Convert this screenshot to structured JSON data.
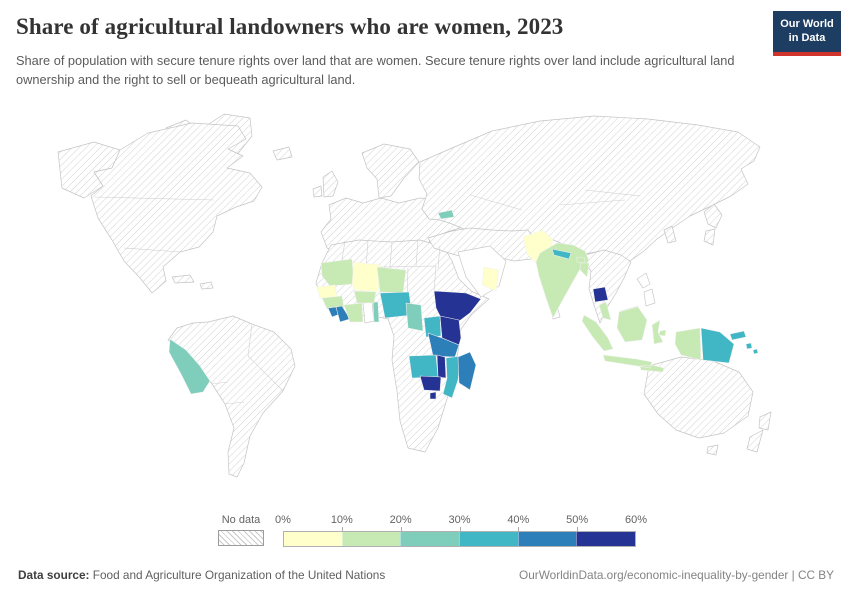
{
  "header": {
    "title": "Share of agricultural landowners who are women, 2023",
    "subtitle": "Share of population with secure tenure rights over land that are women. Secure tenure rights over land include agricultural land ownership and the right to sell or bequeath agricultural land.",
    "logo": {
      "line1": "Our World",
      "line2": "in Data"
    }
  },
  "legend": {
    "no_data_label": "No data",
    "tick_labels": [
      "0%",
      "10%",
      "20%",
      "30%",
      "40%",
      "50%",
      "60%"
    ],
    "bin_colors": [
      "#ffffcc",
      "#c7e9b4",
      "#7fcdbb",
      "#41b6c4",
      "#2c7fb8",
      "#253494"
    ],
    "hatch_color": "#c9c9c9"
  },
  "chart_data": {
    "type": "heatmap",
    "subtype": "choropleth-world-map",
    "title": "Share of agricultural landowners who are women, 2023",
    "unit": "%",
    "value_range": [
      0,
      60
    ],
    "bins": [
      "0-10%",
      "10-20%",
      "20-30%",
      "30-40%",
      "40-50%",
      "50-60%"
    ],
    "bin_colors": [
      "#ffffcc",
      "#c7e9b4",
      "#7fcdbb",
      "#41b6c4",
      "#2c7fb8",
      "#253494"
    ],
    "no_data_style": "hatched",
    "values": [
      {
        "entity": "Senegal",
        "bin": "0-10%"
      },
      {
        "entity": "Mali",
        "bin": "0-10%"
      },
      {
        "entity": "Oman",
        "bin": "0-10%"
      },
      {
        "entity": "Pakistan",
        "bin": "0-10%"
      },
      {
        "entity": "Mauritania",
        "bin": "10-20%"
      },
      {
        "entity": "Guinea",
        "bin": "10-20%"
      },
      {
        "entity": "Côte d'Ivoire",
        "bin": "10-20%"
      },
      {
        "entity": "Burkina Faso",
        "bin": "10-20%"
      },
      {
        "entity": "Niger",
        "bin": "10-20%"
      },
      {
        "entity": "India",
        "bin": "10-20%"
      },
      {
        "entity": "Nepal-region-note",
        "bin": "30-40%"
      },
      {
        "entity": "Bhutan",
        "bin": "10-20%"
      },
      {
        "entity": "Bangladesh",
        "bin": "10-20%"
      },
      {
        "entity": "Malaysia",
        "bin": "10-20%"
      },
      {
        "entity": "Indonesia",
        "bin": "10-20%"
      },
      {
        "entity": "Peru",
        "bin": "20-30%"
      },
      {
        "entity": "Georgia",
        "bin": "20-30%"
      },
      {
        "entity": "Togo",
        "bin": "20-30%"
      },
      {
        "entity": "Cameroon",
        "bin": "20-30%"
      },
      {
        "entity": "Nigeria",
        "bin": "30-40%"
      },
      {
        "entity": "Uganda",
        "bin": "30-40%"
      },
      {
        "entity": "Zambia",
        "bin": "30-40%"
      },
      {
        "entity": "Mozambique",
        "bin": "30-40%"
      },
      {
        "entity": "Nepal",
        "bin": "30-40%"
      },
      {
        "entity": "Papua New Guinea",
        "bin": "30-40%"
      },
      {
        "entity": "Solomon Islands",
        "bin": "30-40%"
      },
      {
        "entity": "Sierra Leone",
        "bin": "40-50%"
      },
      {
        "entity": "Liberia",
        "bin": "40-50%"
      },
      {
        "entity": "Tanzania",
        "bin": "40-50%"
      },
      {
        "entity": "Madagascar",
        "bin": "40-50%"
      },
      {
        "entity": "Ethiopia",
        "bin": "50-60%"
      },
      {
        "entity": "Kenya",
        "bin": "50-60%"
      },
      {
        "entity": "Burundi",
        "bin": "50-60%"
      },
      {
        "entity": "Malawi",
        "bin": "50-60%"
      },
      {
        "entity": "Zimbabwe",
        "bin": "50-60%"
      },
      {
        "entity": "Eswatini",
        "bin": "50-60%"
      },
      {
        "entity": "Cambodia",
        "bin": "50-60%"
      }
    ]
  },
  "footer": {
    "source_label": "Data source:",
    "source_text": " Food and Agriculture Organization of the United Nations",
    "link_text": "OurWorldinData.org/economic-inequality-by-gender | CC BY"
  }
}
